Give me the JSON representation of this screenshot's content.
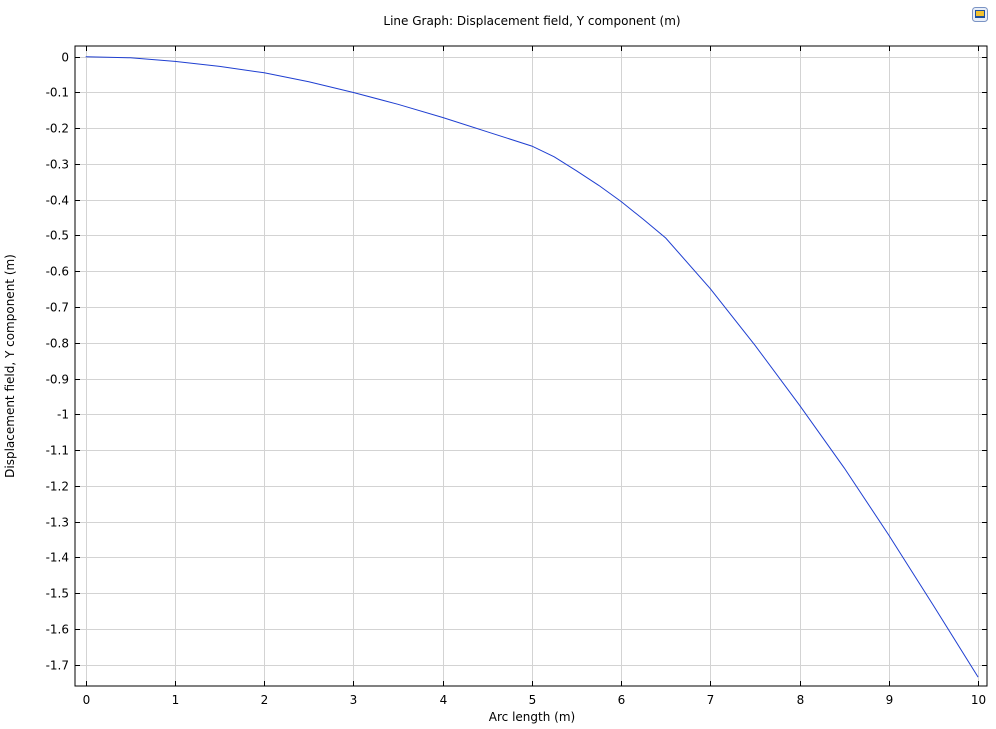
{
  "chart_data": {
    "type": "line",
    "title": "Line Graph: Displacement field, Y component (m)",
    "xlabel": "Arc length (m)",
    "ylabel": "Displacement field, Y component (m)",
    "xlim": [
      -0.12,
      10.1
    ],
    "ylim": [
      -1.76,
      0.03
    ],
    "xticks": [
      0,
      1,
      2,
      3,
      4,
      5,
      6,
      7,
      8,
      9,
      10
    ],
    "xtick_labels": [
      "0",
      "1",
      "2",
      "3",
      "4",
      "5",
      "6",
      "7",
      "8",
      "9",
      "10"
    ],
    "yticks": [
      0,
      -0.1,
      -0.2,
      -0.3,
      -0.4,
      -0.5,
      -0.6,
      -0.7,
      -0.8,
      -0.9,
      -1,
      -1.1,
      -1.2,
      -1.3,
      -1.4,
      -1.5,
      -1.6,
      -1.7
    ],
    "ytick_labels": [
      "0",
      "-0.1",
      "-0.2",
      "-0.3",
      "-0.4",
      "-0.5",
      "-0.6",
      "-0.7",
      "-0.8",
      "-0.9",
      "-1",
      "-1.1",
      "-1.2",
      "-1.3",
      "-1.4",
      "-1.5",
      "-1.6",
      "-1.7"
    ],
    "grid": true,
    "series": [
      {
        "color": "#1f3fd1",
        "x": [
          0,
          0.5,
          1,
          1.5,
          2,
          2.5,
          3,
          3.5,
          4,
          4.5,
          5,
          5.25,
          5.5,
          5.75,
          6,
          6.25,
          6.5,
          7,
          7.5,
          8,
          8.5,
          9,
          9.5,
          10
        ],
        "y": [
          0,
          -0.003,
          -0.013,
          -0.027,
          -0.045,
          -0.07,
          -0.1,
          -0.133,
          -0.17,
          -0.21,
          -0.25,
          -0.28,
          -0.319,
          -0.36,
          -0.405,
          -0.455,
          -0.507,
          -0.649,
          -0.807,
          -0.975,
          -1.15,
          -1.338,
          -1.535,
          -1.735
        ]
      }
    ]
  },
  "icons": {
    "corner": "plot-window-icon"
  }
}
